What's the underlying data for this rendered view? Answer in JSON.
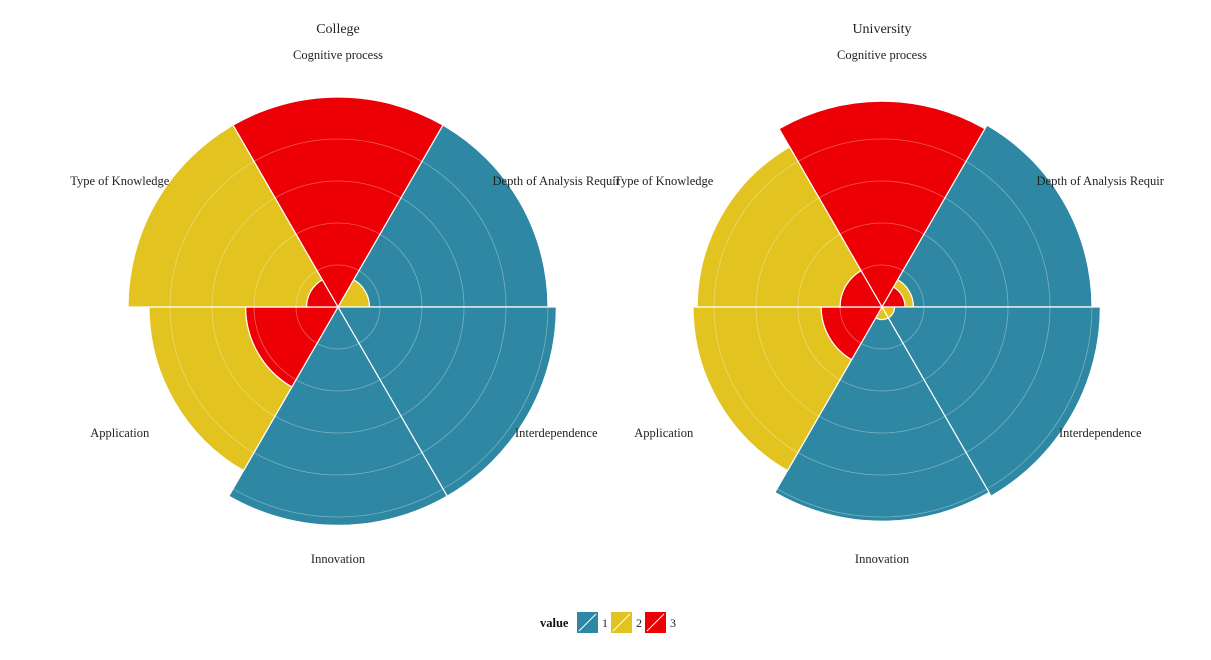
{
  "chart_data": {
    "type": "polar-bar",
    "legend": {
      "title": "value",
      "placement": "bottom",
      "entries": [
        {
          "label": "1",
          "color": "#2e88a3"
        },
        {
          "label": "2",
          "color": "#e3c31f"
        },
        {
          "label": "3",
          "color": "#ec0005"
        }
      ]
    },
    "categories": [
      "Cognitive process",
      "Depth of Analysis Requir",
      "Interdependence",
      "Innovation",
      "Application",
      "Type of Knowledge"
    ],
    "radial_max": 5,
    "facets": [
      {
        "title": "College",
        "stacks": [
          [
            {
              "value": 3,
              "count": 5
            }
          ],
          [
            {
              "value": 2,
              "count": 0.75
            },
            {
              "value": 1,
              "count": 4.25
            }
          ],
          [
            {
              "value": 1,
              "count": 5.2
            }
          ],
          [
            {
              "value": 1,
              "count": 5.2
            }
          ],
          [
            {
              "value": 3,
              "count": 2.2
            },
            {
              "value": 2,
              "count": 2.3
            }
          ],
          [
            {
              "value": 3,
              "count": 0.75
            },
            {
              "value": 2,
              "count": 4.25
            }
          ]
        ]
      },
      {
        "title": "University",
        "stacks": [
          [
            {
              "value": 3,
              "count": 4.9
            }
          ],
          [
            {
              "value": 3,
              "count": 0.55
            },
            {
              "value": 2,
              "count": 0.2
            },
            {
              "value": 1,
              "count": 4.25
            }
          ],
          [
            {
              "value": 2,
              "count": 0.3
            },
            {
              "value": 1,
              "count": 4.9
            }
          ],
          [
            {
              "value": 2,
              "count": 0.3
            },
            {
              "value": 1,
              "count": 4.8
            }
          ],
          [
            {
              "value": 3,
              "count": 1.45
            },
            {
              "value": 2,
              "count": 3.05
            }
          ],
          [
            {
              "value": 3,
              "count": 1.0
            },
            {
              "value": 2,
              "count": 3.4
            }
          ]
        ]
      }
    ]
  }
}
